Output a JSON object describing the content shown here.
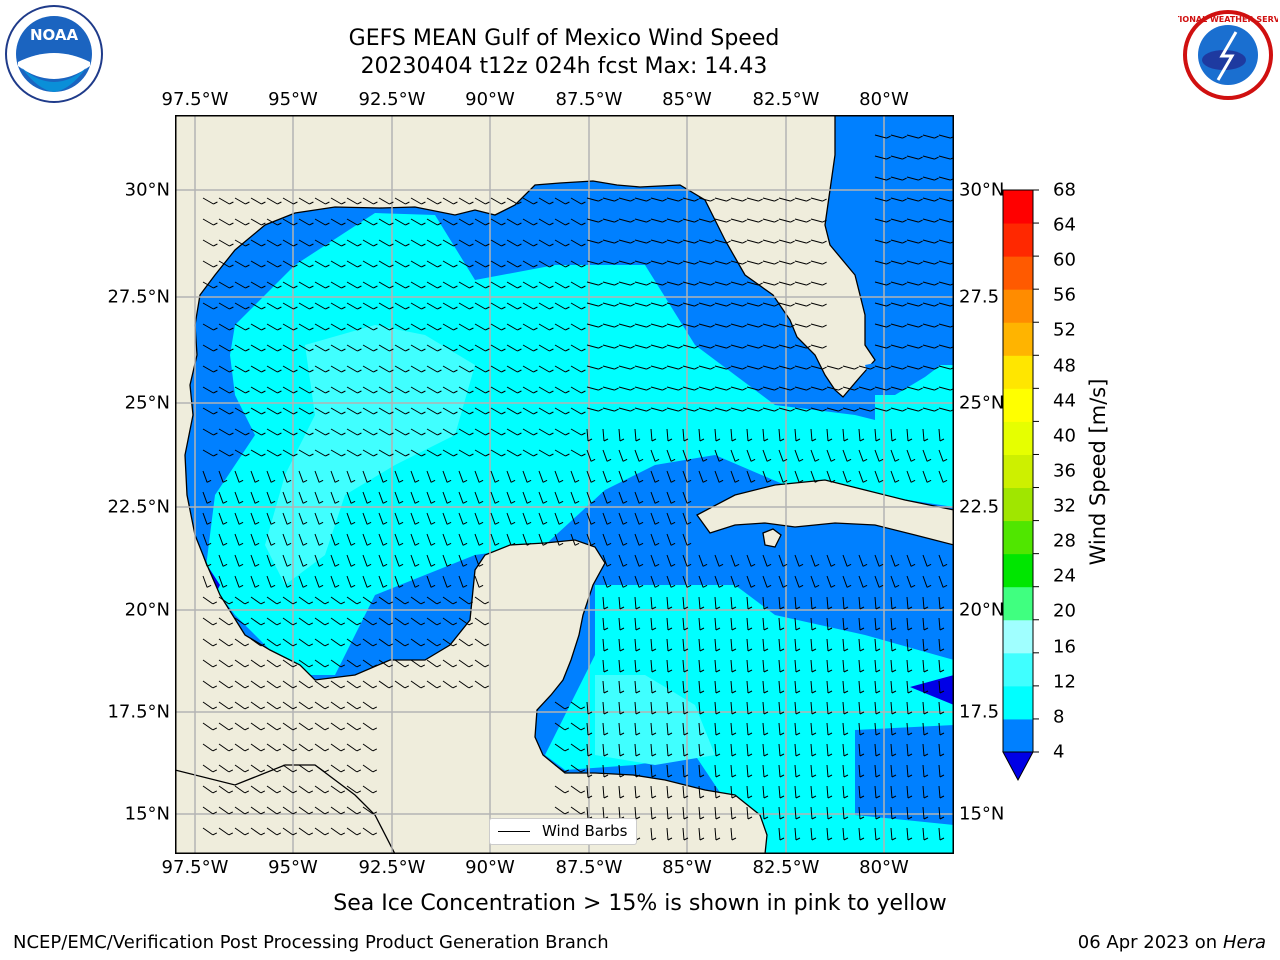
{
  "title": {
    "line1": "GEFS MEAN Gulf of Mexico Wind Speed",
    "line2": "20230404 t12z 024h fcst   Max: 14.43"
  },
  "map": {
    "lon_labels": [
      "97.5°W",
      "95°W",
      "92.5°W",
      "90°W",
      "87.5°W",
      "85°W",
      "82.5°W",
      "80°W"
    ],
    "lat_labels_left": [
      "30°N",
      "27.5°N",
      "25°N",
      "22.5°N",
      "20°N",
      "17.5°N",
      "15°N"
    ],
    "lat_labels_right": [
      "30°N",
      "27.5",
      "25°N",
      "22.5",
      "20°N",
      "17.5",
      "15°N"
    ],
    "lon_range": [
      -98,
      -78.25
    ],
    "lat_range": [
      14,
      31.6
    ],
    "land_color": "#efeddc",
    "gridlines": true,
    "coastlines": true
  },
  "colorbar": {
    "label": "Wind Speed [m/s]",
    "ticks": [
      "68",
      "64",
      "60",
      "56",
      "52",
      "48",
      "44",
      "40",
      "36",
      "32",
      "28",
      "24",
      "20",
      "16",
      "12",
      "8",
      "4"
    ],
    "colors": [
      "#0000e6",
      "#0080ff",
      "#00ffff",
      "#40ffff",
      "#a0ffff",
      "#40ff80",
      "#00e600",
      "#50e600",
      "#a0e600",
      "#cdf000",
      "#e6ff00",
      "#ffff00",
      "#ffe600",
      "#ffb400",
      "#ff8c00",
      "#ff5a00",
      "#ff2800",
      "#ff0000"
    ]
  },
  "legend": {
    "label": "Wind Barbs"
  },
  "footer": {
    "note": "Sea Ice Concentration > 15% is shown in pink to yellow",
    "left": "NCEP/EMC/Verification Post Processing Product Generation Branch",
    "right_prefix": "06 Apr 2023 on ",
    "right_machine": "Hera"
  },
  "logos": {
    "left": "NOAA",
    "right": "NATIONAL WEATHER SERVICE"
  }
}
